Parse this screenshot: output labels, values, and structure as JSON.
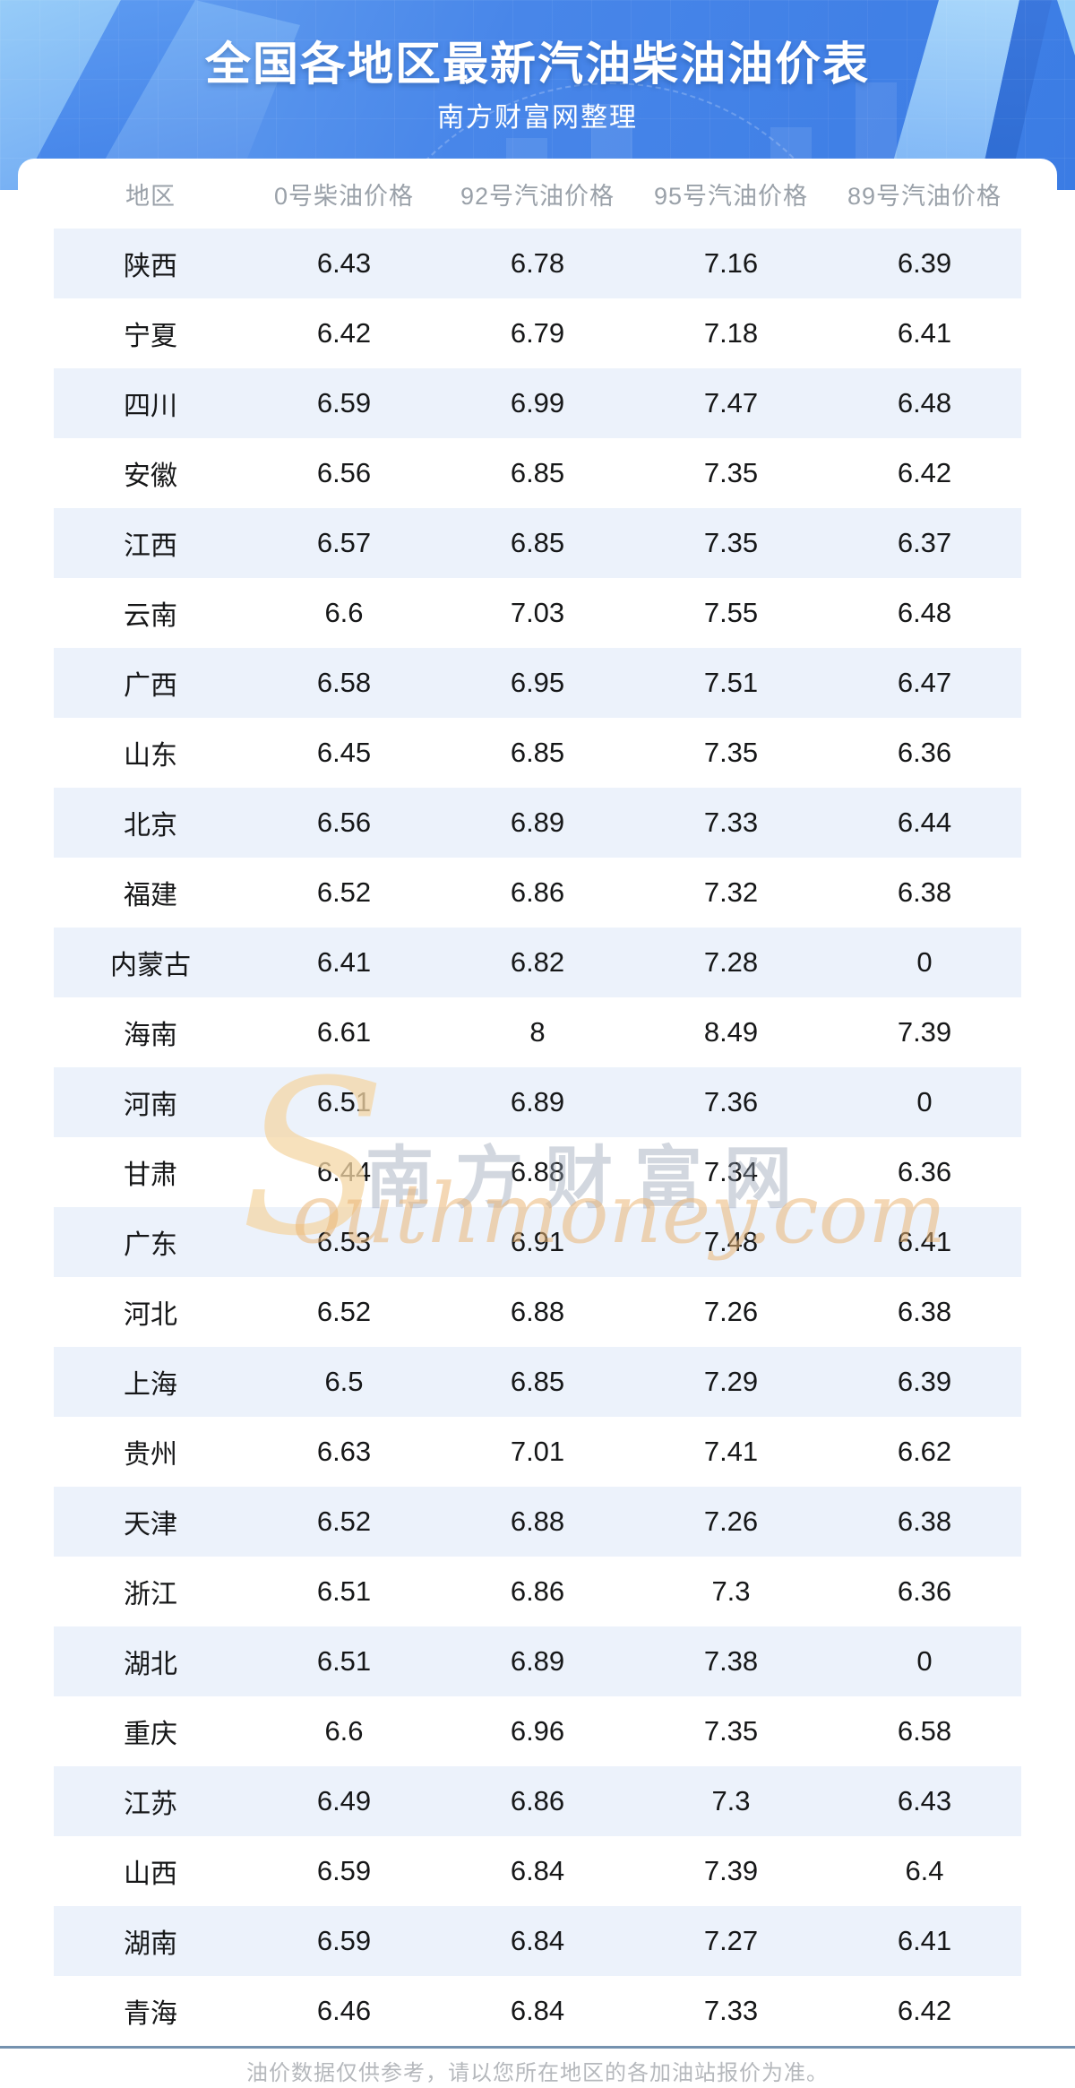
{
  "banner": {
    "title": "全国各地区最新汽油柴油油价表",
    "subtitle": "南方财富网整理"
  },
  "table": {
    "columns": [
      "地区",
      "0号柴油价格",
      "92号汽油价格",
      "95号汽油价格",
      "89号汽油价格"
    ],
    "rows": [
      [
        "陕西",
        "6.43",
        "6.78",
        "7.16",
        "6.39"
      ],
      [
        "宁夏",
        "6.42",
        "6.79",
        "7.18",
        "6.41"
      ],
      [
        "四川",
        "6.59",
        "6.99",
        "7.47",
        "6.48"
      ],
      [
        "安徽",
        "6.56",
        "6.85",
        "7.35",
        "6.42"
      ],
      [
        "江西",
        "6.57",
        "6.85",
        "7.35",
        "6.37"
      ],
      [
        "云南",
        "6.6",
        "7.03",
        "7.55",
        "6.48"
      ],
      [
        "广西",
        "6.58",
        "6.95",
        "7.51",
        "6.47"
      ],
      [
        "山东",
        "6.45",
        "6.85",
        "7.35",
        "6.36"
      ],
      [
        "北京",
        "6.56",
        "6.89",
        "7.33",
        "6.44"
      ],
      [
        "福建",
        "6.52",
        "6.86",
        "7.32",
        "6.38"
      ],
      [
        "内蒙古",
        "6.41",
        "6.82",
        "7.28",
        "0"
      ],
      [
        "海南",
        "6.61",
        "8",
        "8.49",
        "7.39"
      ],
      [
        "河南",
        "6.51",
        "6.89",
        "7.36",
        "0"
      ],
      [
        "甘肃",
        "6.44",
        "6.88",
        "7.34",
        "6.36"
      ],
      [
        "广东",
        "6.53",
        "6.91",
        "7.48",
        "6.41"
      ],
      [
        "河北",
        "6.52",
        "6.88",
        "7.26",
        "6.38"
      ],
      [
        "上海",
        "6.5",
        "6.85",
        "7.29",
        "6.39"
      ],
      [
        "贵州",
        "6.63",
        "7.01",
        "7.41",
        "6.62"
      ],
      [
        "天津",
        "6.52",
        "6.88",
        "7.26",
        "6.38"
      ],
      [
        "浙江",
        "6.51",
        "6.86",
        "7.3",
        "6.36"
      ],
      [
        "湖北",
        "6.51",
        "6.89",
        "7.38",
        "0"
      ],
      [
        "重庆",
        "6.6",
        "6.96",
        "7.35",
        "6.58"
      ],
      [
        "江苏",
        "6.49",
        "6.86",
        "7.3",
        "6.43"
      ],
      [
        "山西",
        "6.59",
        "6.84",
        "7.39",
        "6.4"
      ],
      [
        "湖南",
        "6.59",
        "6.84",
        "7.27",
        "6.41"
      ],
      [
        "青海",
        "6.46",
        "6.84",
        "7.33",
        "6.42"
      ]
    ]
  },
  "watermark": {
    "s_letter": "S",
    "cn": "南方财富网",
    "en": "outhmoney.com"
  },
  "footer": {
    "note": "油价数据仅供参考，请以您所在地区的各加油站报价为准。"
  },
  "colors": {
    "banner_blue": "#4886e9",
    "banner_light_shape": "#97ccf8",
    "banner_dark_edge": "#2e6cd2",
    "row_alt": "#ecf2fb",
    "header_text": "#9aa1a9",
    "cell_text": "#161718",
    "divider": "#7592af",
    "footer_text": "#b5b8bc",
    "watermark_gold": "#ebb776",
    "watermark_gray": "#94a0b2"
  }
}
